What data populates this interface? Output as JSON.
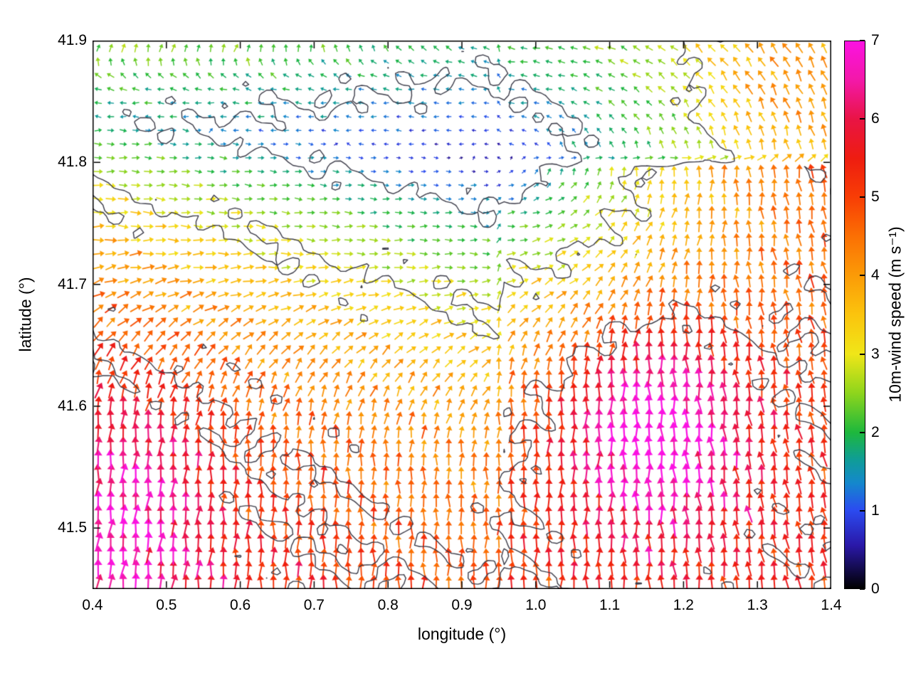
{
  "chart_data": {
    "type": "quiver",
    "title": "",
    "xlabel": "longitude (°)",
    "ylabel": "latitude (°)",
    "x_range": [
      0.4,
      1.4
    ],
    "y_range": [
      41.45,
      41.9
    ],
    "x_ticks": [
      0.4,
      0.5,
      0.6,
      0.7,
      0.8,
      0.9,
      1.0,
      1.1,
      1.2,
      1.3,
      1.4
    ],
    "x_tick_labels": [
      "0.4",
      "0.5",
      "0.6",
      "0.7",
      "0.8",
      "0.9",
      "1.0",
      "1.1",
      "1.2",
      "1.3",
      "1.4"
    ],
    "y_ticks": [
      41.5,
      41.6,
      41.7,
      41.8,
      41.9
    ],
    "y_tick_labels": [
      "41.5",
      "41.6",
      "41.7",
      "41.8",
      "41.9"
    ],
    "grid": {
      "cols": 59,
      "rows": 40
    },
    "colorbar": {
      "label": "10m-wind speed (m s⁻¹)",
      "min": 0,
      "max": 7,
      "ticks": [
        0,
        1,
        2,
        3,
        4,
        5,
        6,
        7
      ],
      "tick_labels": [
        "0",
        "1",
        "2",
        "3",
        "4",
        "5",
        "6",
        "7"
      ],
      "stops": [
        [
          0.0,
          "#000000"
        ],
        [
          0.55,
          "#2a18a8"
        ],
        [
          1.0,
          "#2b4bf0"
        ],
        [
          1.35,
          "#1488cc"
        ],
        [
          1.65,
          "#0f9d96"
        ],
        [
          2.0,
          "#1eb83c"
        ],
        [
          2.5,
          "#8ed51c"
        ],
        [
          3.0,
          "#f0e618"
        ],
        [
          3.5,
          "#fbc40d"
        ],
        [
          4.0,
          "#fb9b07"
        ],
        [
          4.5,
          "#fb7004"
        ],
        [
          5.0,
          "#f83e05"
        ],
        [
          5.5,
          "#ee1d10"
        ],
        [
          6.0,
          "#e91444"
        ],
        [
          6.5,
          "#f318a8"
        ],
        [
          7.0,
          "#fb12e2"
        ]
      ]
    },
    "contour_levels": [
      1.5,
      3,
      5
    ],
    "contour_color": "#3c3c49",
    "field": {
      "comment_calm_zone": "low wind band along top-left to calm minimum near lon 0.9 lat 41.8; speed grows south/east, max magenta patch near lon 1.16 lat 41.58",
      "calm_segment": [
        [
          0.4,
          41.835
        ],
        [
          0.95,
          41.8
        ]
      ],
      "lat_scale": 2.0,
      "north_factor": 0.55,
      "east_factor": 1.3,
      "base_speed_west": 1.7,
      "base_speed_east": 0.5,
      "amp": 5.2,
      "decay": 2.6,
      "bumps": [
        {
          "lon": 1.16,
          "lat": 41.585,
          "sx": 0.13,
          "sy": 0.09,
          "amp": 2.6
        },
        {
          "lon": 0.46,
          "lat": 41.52,
          "sx": 0.1,
          "sy": 0.1,
          "amp": 1.2
        },
        {
          "lon": 1.32,
          "lat": 41.86,
          "sx": 0.1,
          "sy": 0.06,
          "amp": 0.9
        }
      ],
      "direction": {
        "comment": "CCW swirl around calm zone: westward teal band NW, northward flow south and east, NE lean at very top rows, NNW lean far right",
        "blend_start": 0.16,
        "blend_span": 0.34,
        "top_lat": 41.852,
        "right_lean": 0.18,
        "jitter": 0.22
      }
    }
  }
}
